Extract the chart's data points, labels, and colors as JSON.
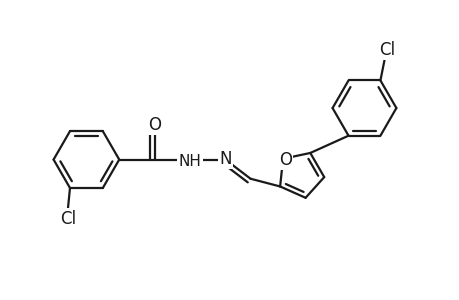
{
  "background_color": "#ffffff",
  "line_color": "#1a1a1a",
  "line_width": 1.6,
  "font_size_atoms": 11,
  "fig_width": 4.6,
  "fig_height": 3.0,
  "dpi": 100,
  "xlim": [
    0,
    10
  ],
  "ylim": [
    0,
    6.52
  ]
}
